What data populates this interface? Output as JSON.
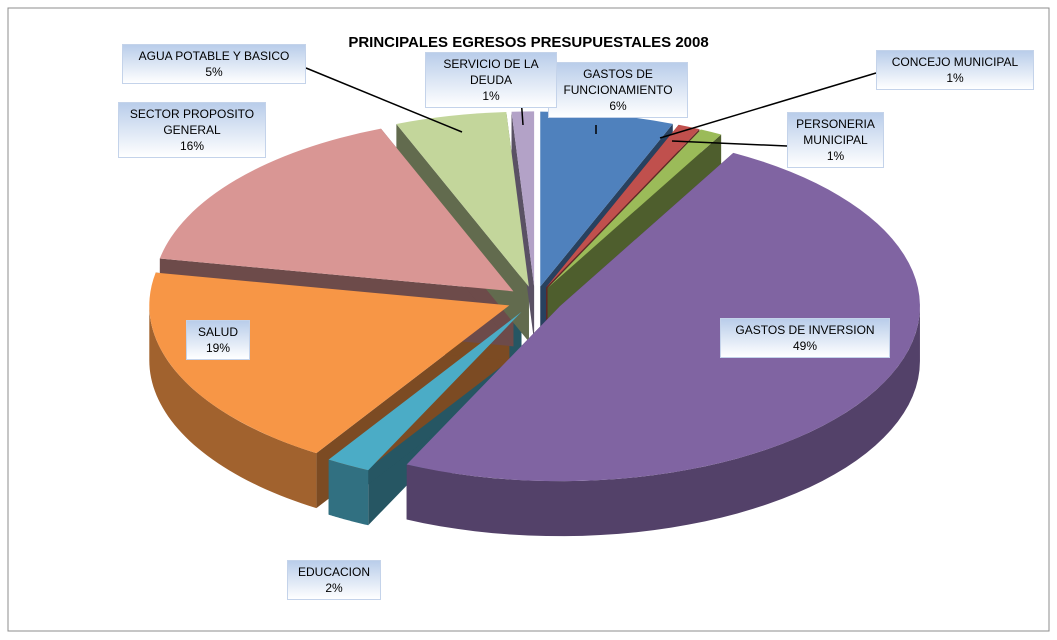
{
  "chart_data": {
    "type": "pie",
    "title": "PRINCIPALES EGRESOS PRESUPUESTALES 2008",
    "categories": [
      "GASTOS DE FUNCIONAMIENTO",
      "CONCEJO MUNICIPAL",
      "PERSONERIA MUNICIPAL",
      "GASTOS DE INVERSION",
      "EDUCACION",
      "SALUD",
      "SECTOR PROPOSITO GENERAL",
      "AGUA POTABLE Y BASICO",
      "SERVICIO DE LA DEUDA"
    ],
    "values": [
      6,
      1,
      1,
      49,
      2,
      19,
      16,
      5,
      1
    ],
    "value_labels": [
      "6%",
      "1%",
      "1%",
      "49%",
      "2%",
      "19%",
      "16%",
      "5%",
      "1%"
    ],
    "colors": [
      "#4f81bd",
      "#c0504d",
      "#9bbb59",
      "#8064a2",
      "#4bacc6",
      "#f79646",
      "#d99694",
      "#c3d69b",
      "#b3a2c7"
    ]
  }
}
